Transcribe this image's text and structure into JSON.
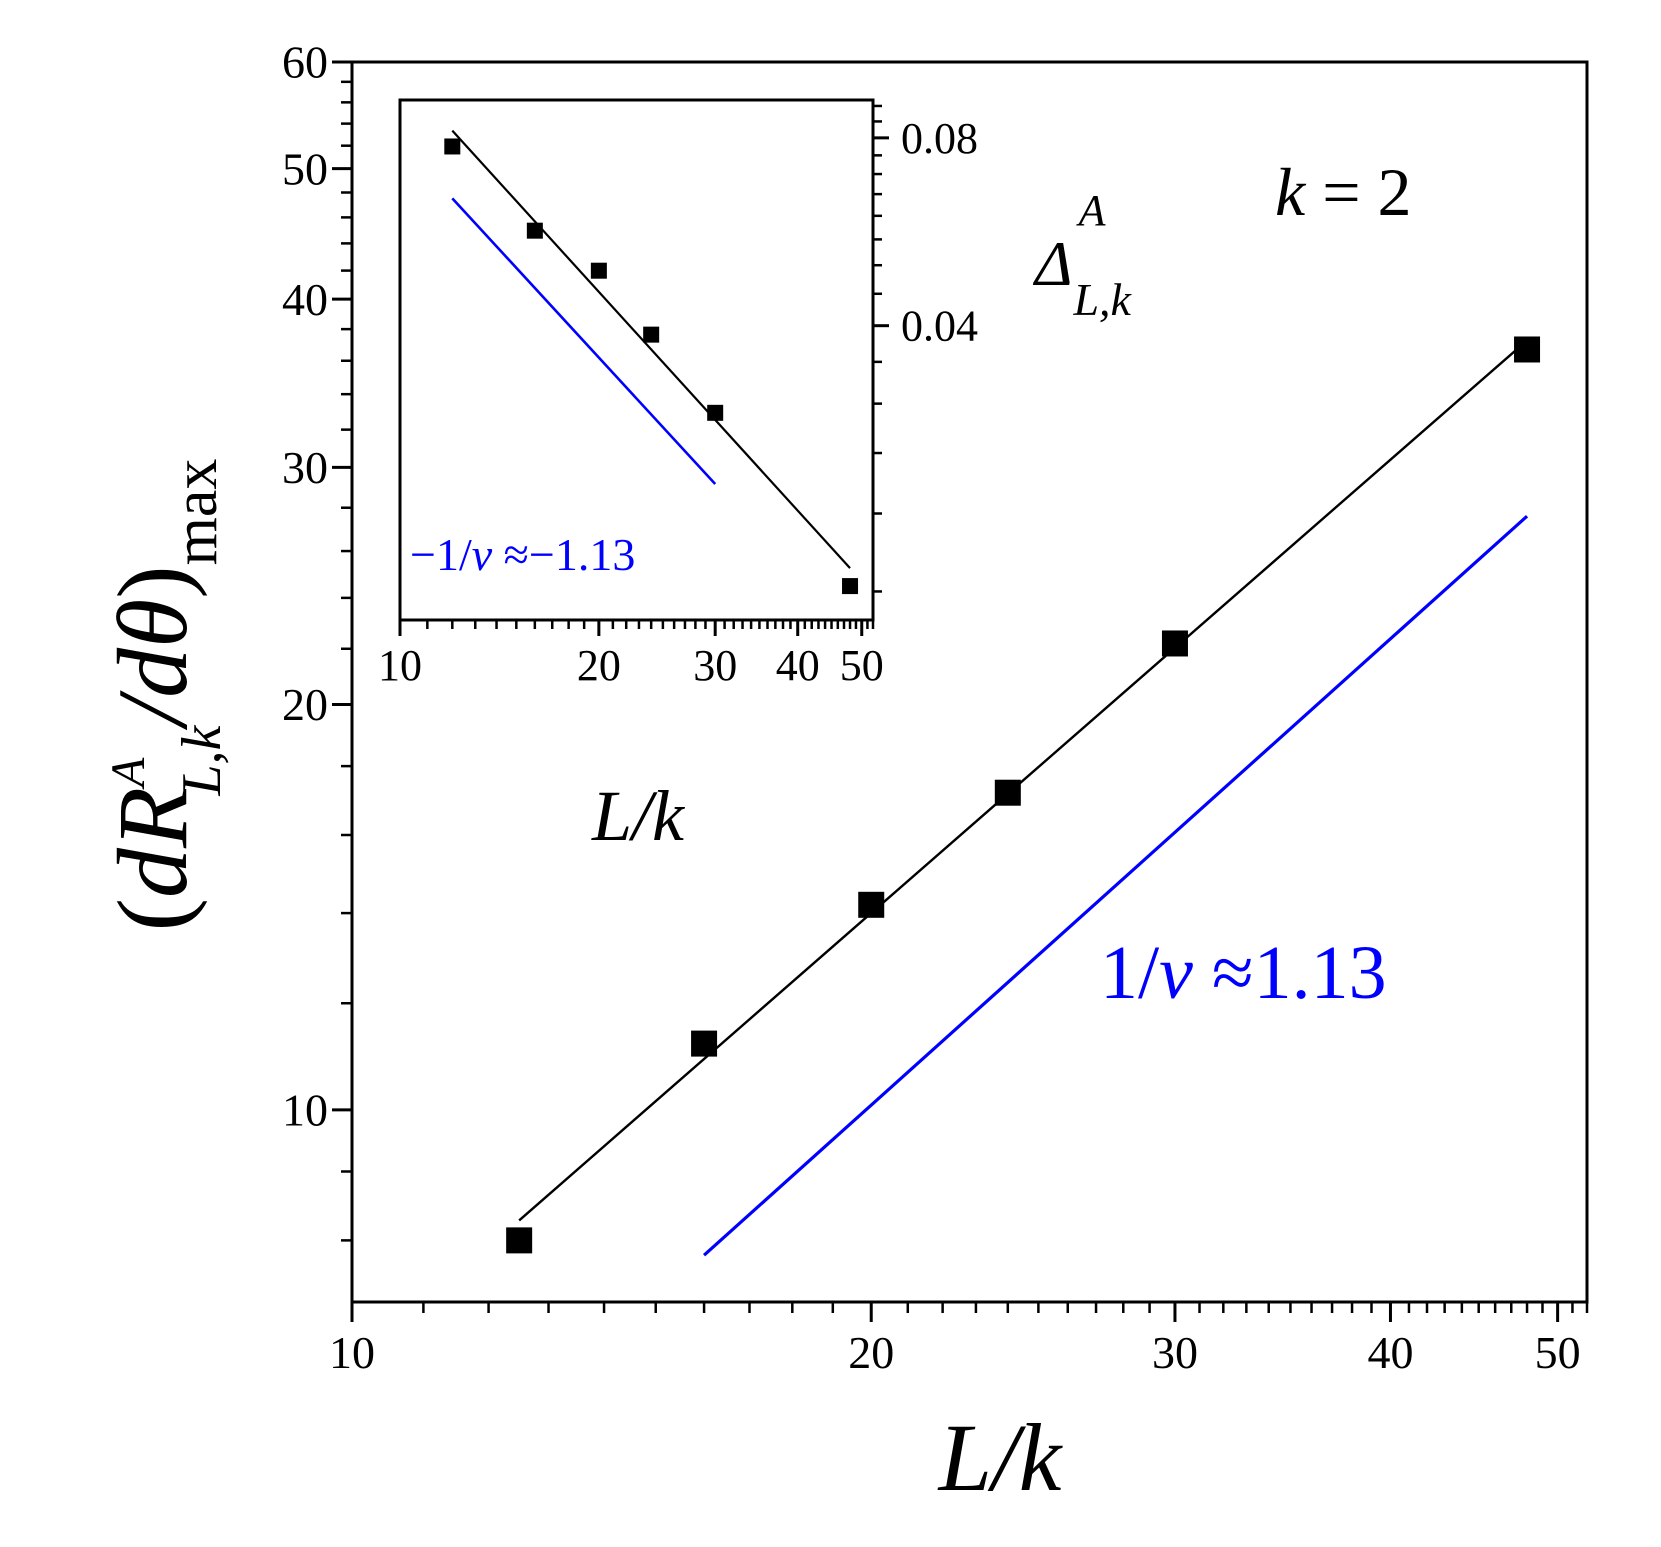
{
  "chart_data": [
    {
      "type": "scatter",
      "panel": "main",
      "xlabel": "L/k",
      "ylabel": "(dR^A_{L,k}/dθ)_max",
      "x_scale": "log",
      "y_scale": "log",
      "xlim": [
        10,
        52
      ],
      "ylim": [
        7.2,
        60
      ],
      "x_ticks": [
        10,
        20,
        30,
        40,
        50
      ],
      "x_tick_labels": [
        "10",
        "20",
        "30",
        "40",
        "50"
      ],
      "y_ticks": [
        10,
        20,
        30,
        40,
        50,
        60
      ],
      "y_tick_labels": [
        "10",
        "20",
        "30",
        "40",
        "50",
        "60"
      ],
      "grid": false,
      "annotation": "k = 2",
      "slope_label": "1/ν ≈1.13",
      "series": [
        {
          "kind": "markers+fit",
          "color": "#000000",
          "x": [
            12.5,
            16,
            20,
            24,
            30,
            48
          ],
          "y": [
            8.0,
            11.2,
            14.2,
            17.2,
            22.2,
            36.7
          ]
        },
        {
          "kind": "guide-line",
          "color": "#0000ff",
          "x": [
            16,
            48
          ],
          "y": [
            7.8,
            27.6
          ]
        }
      ]
    },
    {
      "type": "scatter",
      "panel": "inset",
      "xlabel": "L/k",
      "ylabel": "Δ^A_{L,k}",
      "x_scale": "log",
      "y_scale": "log",
      "xlim": [
        10,
        52
      ],
      "ylim": [
        0.0135,
        0.092
      ],
      "x_ticks": [
        10,
        20,
        30,
        40,
        50
      ],
      "x_tick_labels": [
        "10",
        "20",
        "30",
        "40",
        "50"
      ],
      "y_ticks": [
        0.04,
        0.08
      ],
      "y_tick_labels": [
        "0.04",
        "0.08"
      ],
      "grid": false,
      "slope_label": "−1/ν ≈−1.13",
      "series": [
        {
          "kind": "markers+fit",
          "color": "#000000",
          "x": [
            12,
            16,
            20,
            24,
            30,
            48
          ],
          "y": [
            0.0775,
            0.0568,
            0.049,
            0.0387,
            0.029,
            0.0153
          ]
        },
        {
          "kind": "guide-line",
          "color": "#0000ff",
          "x": [
            12,
            30
          ],
          "y": [
            0.064,
            0.0223
          ]
        }
      ]
    }
  ]
}
